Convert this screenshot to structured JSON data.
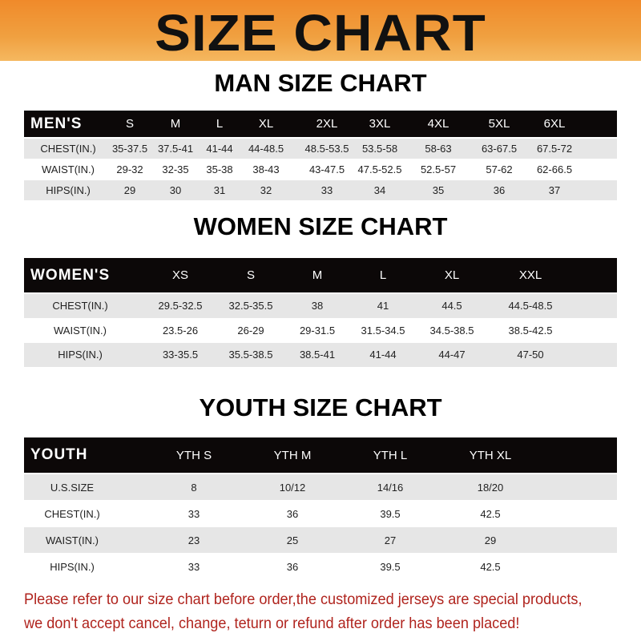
{
  "title": "SIZE CHART",
  "men": {
    "heading": "MAN SIZE CHART",
    "header_label": "MEN'S",
    "sizes": [
      "S",
      "M",
      "L",
      "XL",
      "2XL",
      "3XL",
      "4XL",
      "5XL",
      "6XL"
    ],
    "rows": [
      {
        "label": "CHEST(IN.)",
        "values": [
          "35-37.5",
          "37.5-41",
          "41-44",
          "44-48.5",
          "48.5-53.5",
          "53.5-58",
          "58-63",
          "63-67.5",
          "67.5-72"
        ]
      },
      {
        "label": "WAIST(IN.)",
        "values": [
          "29-32",
          "32-35",
          "35-38",
          "38-43",
          "43-47.5",
          "47.5-52.5",
          "52.5-57",
          "57-62",
          "62-66.5"
        ]
      },
      {
        "label": "HIPS(IN.)",
        "values": [
          "29",
          "30",
          "31",
          "32",
          "33",
          "34",
          "35",
          "36",
          "37"
        ]
      }
    ]
  },
  "women": {
    "heading": "WOMEN SIZE CHART",
    "header_label": "WOMEN'S",
    "sizes": [
      "XS",
      "S",
      "M",
      "L",
      "XL",
      "XXL"
    ],
    "rows": [
      {
        "label": "CHEST(IN.)",
        "values": [
          "29.5-32.5",
          "32.5-35.5",
          "38",
          "41",
          "44.5",
          "44.5-48.5"
        ]
      },
      {
        "label": "WAIST(IN.)",
        "values": [
          "23.5-26",
          "26-29",
          "29-31.5",
          "31.5-34.5",
          "34.5-38.5",
          "38.5-42.5"
        ]
      },
      {
        "label": "HIPS(IN.)",
        "values": [
          "33-35.5",
          "35.5-38.5",
          "38.5-41",
          "41-44",
          "44-47",
          "47-50"
        ]
      }
    ]
  },
  "youth": {
    "heading": "YOUTH SIZE CHART",
    "header_label": "YOUTH",
    "sizes": [
      "YTH S",
      "YTH M",
      "YTH L",
      "YTH XL"
    ],
    "rows": [
      {
        "label": "U.S.SIZE",
        "values": [
          "8",
          "10/12",
          "14/16",
          "18/20"
        ]
      },
      {
        "label": "CHEST(IN.)",
        "values": [
          "33",
          "36",
          "39.5",
          "42.5"
        ]
      },
      {
        "label": "WAIST(IN.)",
        "values": [
          "23",
          "25",
          "27",
          "29"
        ]
      },
      {
        "label": "HIPS(IN.)",
        "values": [
          "33",
          "36",
          "39.5",
          "42.5"
        ]
      }
    ]
  },
  "notice": {
    "line1": "Please refer to our size chart before order,the customized jerseys are special products,",
    "line2": "we don't accept cancel, change, teturn or refund after order has been placed!"
  },
  "colors": {
    "banner": "#f08a2a",
    "header": "#0c0808",
    "stripe": "#e6e6e6",
    "notice": "#b0241e"
  }
}
